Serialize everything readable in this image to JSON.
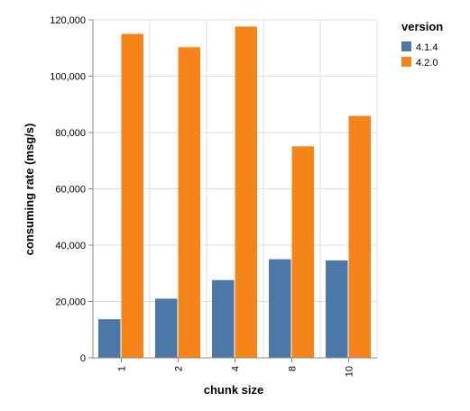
{
  "chart_data": {
    "type": "bar",
    "categories": [
      "1",
      "2",
      "4",
      "8",
      "10"
    ],
    "series": [
      {
        "name": "4.1.4",
        "color": "#4c78a8",
        "values": [
          13700,
          21000,
          27600,
          35000,
          34600
        ]
      },
      {
        "name": "4.2.0",
        "color": "#f58518",
        "values": [
          115000,
          110300,
          117600,
          75100,
          85900
        ]
      }
    ],
    "title": "",
    "xlabel": "chunk size",
    "ylabel": "consuming rate (msg/s)",
    "ylim": [
      0,
      120000
    ],
    "yticks": [
      0,
      20000,
      40000,
      60000,
      80000,
      100000,
      120000
    ],
    "ytick_labels": [
      "0",
      "20,000",
      "40,000",
      "60,000",
      "80,000",
      "100,000",
      "120,000"
    ],
    "grid": true,
    "legend_title": "version",
    "legend_position": "right"
  }
}
